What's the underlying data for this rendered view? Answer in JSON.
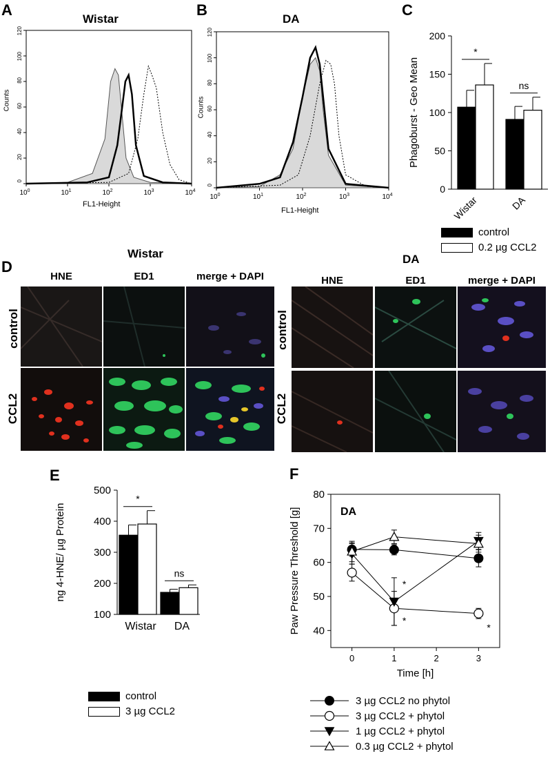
{
  "panels": {
    "A": {
      "letter": "A",
      "title": "Wistar",
      "ylabel": "Counts",
      "xlabel": "FL1-Height"
    },
    "B": {
      "letter": "B",
      "title": "DA",
      "ylabel": "Counts",
      "xlabel": "FL1-Height"
    },
    "C": {
      "letter": "C",
      "ylabel": "Phagoburst - Geo Mean",
      "legend": [
        "control",
        "0.2 µg CCL2"
      ],
      "sig": [
        "*",
        "ns"
      ]
    },
    "D": {
      "letter": "D",
      "group_titles": [
        "Wistar",
        "DA"
      ],
      "columns": [
        "HNE",
        "ED1",
        "merge + DAPI"
      ],
      "rows": [
        "control",
        "CCL2"
      ]
    },
    "E": {
      "letter": "E",
      "ylabel": "ng 4-HNE/ µg Protein",
      "legend": [
        "control",
        "3 µg CCL2"
      ],
      "sig": [
        "*",
        "ns"
      ]
    },
    "F": {
      "letter": "F",
      "ylabel": "Paw Pressure Threshold [g]",
      "xlabel": "Time [h]",
      "inset": "DA",
      "legend": [
        "3 µg CCL2 no phytol",
        "3 µg CCL2 + phytol",
        "1 µg CCL2 + phytol",
        "0.3 µg CCL2 + phytol"
      ]
    }
  },
  "colors": {
    "control": "#000000",
    "treated": "#ffffff",
    "fill_gray": "#d9d9d9",
    "micro_bg": "#0d0d0d",
    "hne": "#e0301e",
    "ed1": "#2ec35a",
    "dapi": "#5a4fc4"
  },
  "chart_data": [
    {
      "type": "area",
      "panel": "A",
      "xscale": "log",
      "xlim": [
        1,
        10000
      ],
      "ylim": [
        0,
        120
      ],
      "xticks": [
        "10^0",
        "10^1",
        "10^2",
        "10^3",
        "10^4"
      ],
      "yticks": [
        0,
        20,
        40,
        60,
        80,
        100,
        120
      ],
      "series": [
        {
          "style": "gray-filled",
          "x": [
            1,
            10,
            40,
            80,
            110,
            140,
            170,
            200,
            260,
            400,
            1000,
            10000
          ],
          "y": [
            0,
            1,
            8,
            35,
            80,
            90,
            85,
            60,
            20,
            5,
            1,
            0
          ]
        },
        {
          "style": "thick-solid",
          "x": [
            1,
            30,
            100,
            160,
            210,
            250,
            300,
            360,
            450,
            700,
            2000,
            10000
          ],
          "y": [
            0,
            1,
            5,
            30,
            60,
            80,
            85,
            70,
            30,
            6,
            1,
            0
          ]
        },
        {
          "style": "dotted",
          "x": [
            1,
            100,
            300,
            500,
            700,
            900,
            1100,
            1400,
            2000,
            3000,
            5000,
            10000
          ],
          "y": [
            0,
            1,
            8,
            35,
            70,
            92,
            85,
            75,
            40,
            15,
            3,
            0
          ]
        }
      ]
    },
    {
      "type": "area",
      "panel": "B",
      "xscale": "log",
      "xlim": [
        1,
        10000
      ],
      "ylim": [
        0,
        120
      ],
      "xticks": [
        "10^0",
        "10^1",
        "10^2",
        "10^3",
        "10^4"
      ],
      "yticks": [
        0,
        20,
        40,
        60,
        80,
        100,
        120
      ],
      "series": [
        {
          "style": "gray-filled",
          "x": [
            1,
            10,
            30,
            60,
            100,
            150,
            200,
            250,
            300,
            400,
            1000,
            10000
          ],
          "y": [
            0,
            1,
            10,
            30,
            70,
            95,
            100,
            90,
            60,
            25,
            2,
            0
          ]
        },
        {
          "style": "thick-solid",
          "x": [
            1,
            10,
            30,
            60,
            100,
            150,
            200,
            250,
            300,
            400,
            1000,
            10000
          ],
          "y": [
            0,
            3,
            8,
            35,
            70,
            100,
            108,
            95,
            70,
            30,
            3,
            0
          ]
        },
        {
          "style": "dotted",
          "x": [
            1,
            30,
            80,
            150,
            250,
            350,
            450,
            550,
            700,
            1000,
            3000,
            10000
          ],
          "y": [
            0,
            2,
            10,
            40,
            80,
            98,
            95,
            80,
            40,
            10,
            1,
            0
          ]
        }
      ]
    },
    {
      "type": "bar",
      "panel": "C",
      "categories": [
        "Wistar",
        "DA"
      ],
      "ylim": [
        0,
        200
      ],
      "yticks": [
        0,
        50,
        100,
        150,
        200
      ],
      "series": [
        {
          "name": "control",
          "values": [
            107,
            91
          ],
          "errors": [
            22,
            17
          ]
        },
        {
          "name": "0.2 µg CCL2",
          "values": [
            136,
            103
          ],
          "errors": [
            28,
            17
          ]
        }
      ]
    },
    {
      "type": "bar",
      "panel": "E",
      "categories": [
        "Wistar",
        "DA"
      ],
      "ylim": [
        100,
        500
      ],
      "yticks": [
        100,
        200,
        300,
        400,
        500
      ],
      "series": [
        {
          "name": "control",
          "values": [
            355,
            171
          ],
          "errors": [
            33,
            10
          ]
        },
        {
          "name": "3 µg CCL2",
          "values": [
            391,
            186
          ],
          "errors": [
            43,
            9
          ]
        }
      ]
    },
    {
      "type": "line",
      "panel": "F",
      "x": [
        0,
        1,
        3
      ],
      "xlim": [
        -0.5,
        3.5
      ],
      "ylim": [
        35,
        80
      ],
      "xticks": [
        0,
        1,
        2,
        3
      ],
      "yticks": [
        40,
        50,
        60,
        70,
        80
      ],
      "series": [
        {
          "name": "3 µg CCL2 no phytol",
          "marker": "filled-circle",
          "values": [
            63.8,
            63.7,
            61.2
          ],
          "errors": [
            2,
            1.5,
            2.5
          ]
        },
        {
          "name": "3 µg CCL2 + phytol",
          "marker": "open-circle",
          "values": [
            57,
            46.5,
            45
          ],
          "errors": [
            2.5,
            5,
            1.5
          ],
          "stars": [
            "",
            "*",
            "*"
          ]
        },
        {
          "name": "1 µg CCL2 + phytol",
          "marker": "filled-triangle-down",
          "values": [
            62.5,
            48.5,
            66.3
          ],
          "errors": [
            3,
            7,
            2.5
          ],
          "stars": [
            "",
            "*",
            ""
          ]
        },
        {
          "name": "0.3 µg CCL2 + phytol",
          "marker": "open-triangle-up",
          "values": [
            63.2,
            67.5,
            65.5
          ],
          "errors": [
            3,
            2,
            2.5
          ]
        }
      ]
    }
  ]
}
